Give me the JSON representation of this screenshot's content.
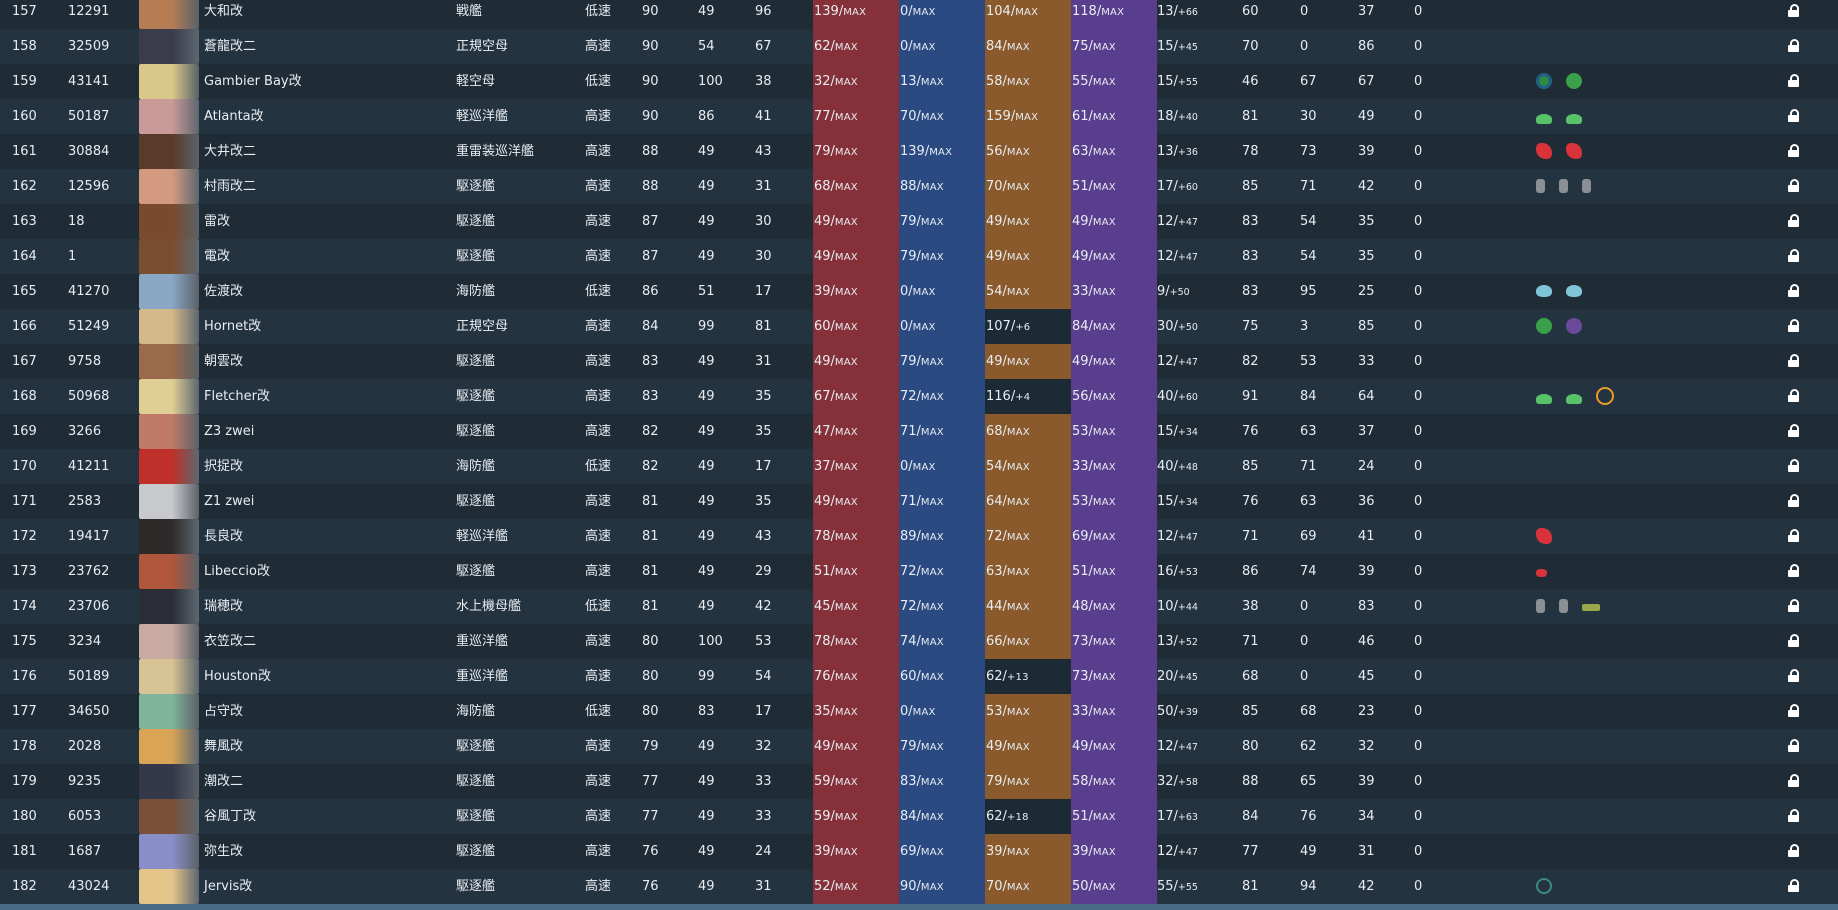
{
  "table": {
    "max_label": "MAX",
    "rows": [
      {
        "idx": "157",
        "id": "12291",
        "name": "大和改",
        "type": "戦艦",
        "speed": "低速",
        "lv": "90",
        "luck": "49",
        "luck_max": "96",
        "fp": "139",
        "tp": "0",
        "aa": "104",
        "aa_max": true,
        "ar": "118",
        "hp": "13",
        "hp_suf": "+66",
        "ev": "60",
        "asw": "0",
        "los": "37",
        "zero": "0",
        "equip": [],
        "portrait": "#b67d55"
      },
      {
        "idx": "158",
        "id": "32509",
        "name": "蒼龍改二",
        "type": "正規空母",
        "speed": "高速",
        "lv": "90",
        "luck": "54",
        "luck_max": "67",
        "fp": "62",
        "tp": "0",
        "aa": "84",
        "aa_max": true,
        "ar": "75",
        "hp": "15",
        "hp_suf": "+45",
        "ev": "70",
        "asw": "0",
        "los": "86",
        "zero": "0",
        "equip": [],
        "portrait": "#3b3b4a"
      },
      {
        "idx": "159",
        "id": "43141",
        "name": "Gambier Bay改",
        "type": "軽空母",
        "speed": "低速",
        "lv": "90",
        "luck": "100",
        "luck_max": "38",
        "fp": "32",
        "tp": "13",
        "aa": "58",
        "aa_max": true,
        "ar": "55",
        "hp": "15",
        "hp_suf": "+55",
        "ev": "46",
        "asw": "67",
        "los": "67",
        "zero": "0",
        "equip": [
          "plane-attack-icon",
          "plane-fighter-icon"
        ],
        "portrait": "#d8c98a"
      },
      {
        "idx": "160",
        "id": "50187",
        "name": "Atlanta改",
        "type": "軽巡洋艦",
        "speed": "高速",
        "lv": "90",
        "luck": "86",
        "luck_max": "41",
        "fp": "77",
        "tp": "70",
        "aa": "159",
        "aa_max": true,
        "ar": "61",
        "hp": "18",
        "hp_suf": "+40",
        "ev": "81",
        "asw": "30",
        "los": "49",
        "zero": "0",
        "equip": [
          "aa-gun-icon",
          "aa-gun-icon"
        ],
        "portrait": "#c99a98"
      },
      {
        "idx": "161",
        "id": "30884",
        "name": "大井改二",
        "type": "重雷装巡洋艦",
        "speed": "高速",
        "lv": "88",
        "luck": "49",
        "luck_max": "43",
        "fp": "79",
        "tp": "139",
        "aa": "56",
        "aa_max": true,
        "ar": "63",
        "hp": "13",
        "hp_suf": "+36",
        "ev": "78",
        "asw": "73",
        "los": "39",
        "zero": "0",
        "equip": [
          "main-gun-icon",
          "main-gun-icon"
        ],
        "portrait": "#5a3a2a"
      },
      {
        "idx": "162",
        "id": "12596",
        "name": "村雨改二",
        "type": "駆逐艦",
        "speed": "高速",
        "lv": "88",
        "luck": "49",
        "luck_max": "31",
        "fp": "68",
        "tp": "88",
        "aa": "70",
        "aa_max": true,
        "ar": "51",
        "hp": "17",
        "hp_suf": "+60",
        "ev": "85",
        "asw": "71",
        "los": "42",
        "zero": "0",
        "equip": [
          "drum-canister-icon",
          "drum-canister-icon",
          "drum-canister-icon"
        ],
        "portrait": "#d49a80"
      },
      {
        "idx": "163",
        "id": "18",
        "name": "雷改",
        "type": "駆逐艦",
        "speed": "高速",
        "lv": "87",
        "luck": "49",
        "luck_max": "30",
        "fp": "49",
        "tp": "79",
        "aa": "49",
        "aa_max": true,
        "ar": "49",
        "hp": "12",
        "hp_suf": "+47",
        "ev": "83",
        "asw": "54",
        "los": "35",
        "zero": "0",
        "equip": [],
        "portrait": "#7a4a2c"
      },
      {
        "idx": "164",
        "id": "1",
        "name": "電改",
        "type": "駆逐艦",
        "speed": "高速",
        "lv": "87",
        "luck": "49",
        "luck_max": "30",
        "fp": "49",
        "tp": "79",
        "aa": "49",
        "aa_max": true,
        "ar": "49",
        "hp": "12",
        "hp_suf": "+47",
        "ev": "83",
        "asw": "54",
        "los": "35",
        "zero": "0",
        "equip": [],
        "portrait": "#7a4f30"
      },
      {
        "idx": "165",
        "id": "41270",
        "name": "佐渡改",
        "type": "海防艦",
        "speed": "低速",
        "lv": "86",
        "luck": "51",
        "luck_max": "17",
        "fp": "39",
        "tp": "0",
        "aa": "54",
        "aa_max": true,
        "ar": "33",
        "hp": "9",
        "hp_suf": "+50",
        "ev": "83",
        "asw": "95",
        "los": "25",
        "zero": "0",
        "equip": [
          "depth-charge-icon",
          "depth-charge-icon"
        ],
        "portrait": "#8aa7c4"
      },
      {
        "idx": "166",
        "id": "51249",
        "name": "Hornet改",
        "type": "正規空母",
        "speed": "高速",
        "lv": "84",
        "luck": "99",
        "luck_max": "81",
        "fp": "60",
        "tp": "0",
        "aa": "107",
        "aa_max": false,
        "aa_suf": "+6",
        "ar": "84",
        "hp": "30",
        "hp_suf": "+50",
        "ev": "75",
        "asw": "3",
        "los": "85",
        "zero": "0",
        "equip": [
          "plane-fighter-icon",
          "plane-bomber-icon"
        ],
        "portrait": "#d3b88a"
      },
      {
        "idx": "167",
        "id": "9758",
        "name": "朝雲改",
        "type": "駆逐艦",
        "speed": "高速",
        "lv": "83",
        "luck": "49",
        "luck_max": "31",
        "fp": "49",
        "tp": "79",
        "aa": "49",
        "aa_max": true,
        "ar": "49",
        "hp": "12",
        "hp_suf": "+47",
        "ev": "82",
        "asw": "53",
        "los": "33",
        "zero": "0",
        "equip": [],
        "portrait": "#9a6a4a"
      },
      {
        "idx": "168",
        "id": "50968",
        "name": "Fletcher改",
        "type": "駆逐艦",
        "speed": "高速",
        "lv": "83",
        "luck": "49",
        "luck_max": "35",
        "fp": "67",
        "tp": "72",
        "aa": "116",
        "aa_max": false,
        "aa_suf": "+4",
        "ar": "56",
        "hp": "40",
        "hp_suf": "+60",
        "ev": "91",
        "asw": "84",
        "los": "64",
        "zero": "0",
        "equip": [
          "aa-gun-icon",
          "aa-gun-icon",
          "radar-icon"
        ],
        "portrait": "#e0cf94"
      },
      {
        "idx": "169",
        "id": "3266",
        "name": "Z3 zwei",
        "type": "駆逐艦",
        "speed": "高速",
        "lv": "82",
        "luck": "49",
        "luck_max": "35",
        "fp": "47",
        "tp": "71",
        "aa": "68",
        "aa_max": true,
        "ar": "53",
        "hp": "15",
        "hp_suf": "+34",
        "ev": "76",
        "asw": "63",
        "los": "37",
        "zero": "0",
        "equip": [],
        "portrait": "#c07a68"
      },
      {
        "idx": "170",
        "id": "41211",
        "name": "択捉改",
        "type": "海防艦",
        "speed": "低速",
        "lv": "82",
        "luck": "49",
        "luck_max": "17",
        "fp": "37",
        "tp": "0",
        "aa": "54",
        "aa_max": true,
        "ar": "33",
        "hp": "40",
        "hp_suf": "+48",
        "ev": "85",
        "asw": "71",
        "los": "24",
        "zero": "0",
        "equip": [],
        "portrait": "#c0302a"
      },
      {
        "idx": "171",
        "id": "2583",
        "name": "Z1 zwei",
        "type": "駆逐艦",
        "speed": "高速",
        "lv": "81",
        "luck": "49",
        "luck_max": "35",
        "fp": "49",
        "tp": "71",
        "aa": "64",
        "aa_max": true,
        "ar": "53",
        "hp": "15",
        "hp_suf": "+34",
        "ev": "76",
        "asw": "63",
        "los": "36",
        "zero": "0",
        "equip": [],
        "portrait": "#c7c9cc"
      },
      {
        "idx": "172",
        "id": "19417",
        "name": "長良改",
        "type": "軽巡洋艦",
        "speed": "高速",
        "lv": "81",
        "luck": "49",
        "luck_max": "43",
        "fp": "78",
        "tp": "89",
        "aa": "72",
        "aa_max": true,
        "ar": "69",
        "hp": "12",
        "hp_suf": "+47",
        "ev": "71",
        "asw": "69",
        "los": "41",
        "zero": "0",
        "equip": [
          "main-gun-icon"
        ],
        "portrait": "#2e2a2a"
      },
      {
        "idx": "173",
        "id": "23762",
        "name": "Libeccio改",
        "type": "駆逐艦",
        "speed": "高速",
        "lv": "81",
        "luck": "49",
        "luck_max": "29",
        "fp": "51",
        "tp": "72",
        "aa": "63",
        "aa_max": true,
        "ar": "51",
        "hp": "16",
        "hp_suf": "+53",
        "ev": "86",
        "asw": "74",
        "los": "39",
        "zero": "0",
        "equip": [
          "small-gun-icon"
        ],
        "portrait": "#b0563a"
      },
      {
        "idx": "174",
        "id": "23706",
        "name": "瑞穂改",
        "type": "水上機母艦",
        "speed": "低速",
        "lv": "81",
        "luck": "49",
        "luck_max": "42",
        "fp": "45",
        "tp": "72",
        "aa": "44",
        "aa_max": true,
        "ar": "48",
        "hp": "10",
        "hp_suf": "+44",
        "ev": "38",
        "asw": "0",
        "los": "83",
        "zero": "0",
        "equip": [
          "drum-canister-icon",
          "drum-canister-icon",
          "landing-craft-icon"
        ],
        "portrait": "#2a2d36"
      },
      {
        "idx": "175",
        "id": "3234",
        "name": "衣笠改二",
        "type": "重巡洋艦",
        "speed": "高速",
        "lv": "80",
        "luck": "100",
        "luck_max": "53",
        "fp": "78",
        "tp": "74",
        "aa": "66",
        "aa_max": true,
        "ar": "73",
        "hp": "13",
        "hp_suf": "+52",
        "ev": "71",
        "asw": "0",
        "los": "46",
        "zero": "0",
        "equip": [],
        "portrait": "#c8aaa0"
      },
      {
        "idx": "176",
        "id": "50189",
        "name": "Houston改",
        "type": "重巡洋艦",
        "speed": "高速",
        "lv": "80",
        "luck": "99",
        "luck_max": "54",
        "fp": "76",
        "tp": "60",
        "aa": "62",
        "aa_max": false,
        "aa_suf": "+13",
        "ar": "73",
        "hp": "20",
        "hp_suf": "+45",
        "ev": "68",
        "asw": "0",
        "los": "45",
        "zero": "0",
        "equip": [],
        "portrait": "#d8c394"
      },
      {
        "idx": "177",
        "id": "34650",
        "name": "占守改",
        "type": "海防艦",
        "speed": "低速",
        "lv": "80",
        "luck": "83",
        "luck_max": "17",
        "fp": "35",
        "tp": "0",
        "aa": "53",
        "aa_max": true,
        "ar": "33",
        "hp": "50",
        "hp_suf": "+39",
        "ev": "85",
        "asw": "68",
        "los": "23",
        "zero": "0",
        "equip": [],
        "portrait": "#7fb59a"
      },
      {
        "idx": "178",
        "id": "2028",
        "name": "舞風改",
        "type": "駆逐艦",
        "speed": "高速",
        "lv": "79",
        "luck": "49",
        "luck_max": "32",
        "fp": "49",
        "tp": "79",
        "aa": "49",
        "aa_max": true,
        "ar": "49",
        "hp": "12",
        "hp_suf": "+47",
        "ev": "80",
        "asw": "62",
        "los": "32",
        "zero": "0",
        "equip": [],
        "portrait": "#d9a455"
      },
      {
        "idx": "179",
        "id": "9235",
        "name": "潮改二",
        "type": "駆逐艦",
        "speed": "高速",
        "lv": "77",
        "luck": "49",
        "luck_max": "33",
        "fp": "59",
        "tp": "83",
        "aa": "79",
        "aa_max": true,
        "ar": "58",
        "hp": "32",
        "hp_suf": "+58",
        "ev": "88",
        "asw": "65",
        "los": "39",
        "zero": "0",
        "equip": [],
        "portrait": "#343848"
      },
      {
        "idx": "180",
        "id": "6053",
        "name": "谷風丁改",
        "type": "駆逐艦",
        "speed": "高速",
        "lv": "77",
        "luck": "49",
        "luck_max": "33",
        "fp": "59",
        "tp": "84",
        "aa": "62",
        "aa_max": false,
        "aa_suf": "+18",
        "ar": "51",
        "hp": "17",
        "hp_suf": "+63",
        "ev": "84",
        "asw": "76",
        "los": "34",
        "zero": "0",
        "equip": [],
        "portrait": "#7a5038"
      },
      {
        "idx": "181",
        "id": "1687",
        "name": "弥生改",
        "type": "駆逐艦",
        "speed": "高速",
        "lv": "76",
        "luck": "49",
        "luck_max": "24",
        "fp": "39",
        "tp": "69",
        "aa": "39",
        "aa_max": true,
        "ar": "39",
        "hp": "12",
        "hp_suf": "+47",
        "ev": "77",
        "asw": "49",
        "los": "31",
        "zero": "0",
        "equip": [],
        "portrait": "#8a8ec8"
      },
      {
        "idx": "182",
        "id": "43024",
        "name": "Jervis改",
        "type": "駆逐艦",
        "speed": "高速",
        "lv": "76",
        "luck": "49",
        "luck_max": "31",
        "fp": "52",
        "tp": "90",
        "aa": "70",
        "aa_max": true,
        "ar": "50",
        "hp": "55",
        "hp_suf": "+55",
        "ev": "81",
        "asw": "94",
        "los": "42",
        "zero": "0",
        "equip": [
          "sonar-icon"
        ],
        "portrait": "#e3c58a"
      }
    ]
  },
  "colors": {
    "firepower": "#86313a",
    "torpedo": "#2b4a82",
    "antiair_max": "#8a5a2c",
    "armor": "#5a3e8e"
  }
}
